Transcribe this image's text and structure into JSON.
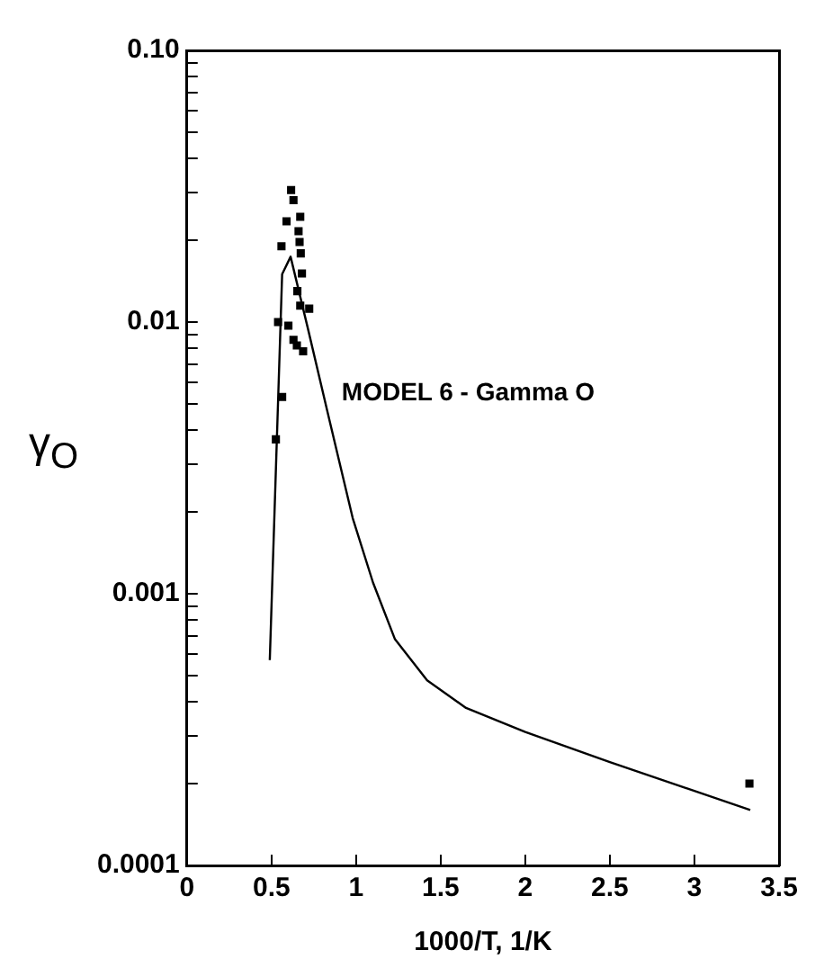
{
  "chart_data": {
    "type": "scatter",
    "xlabel": "1000/T, 1/K",
    "ylabel": "γ$_{O}$",
    "log": "y",
    "grid": false,
    "legend": false,
    "xlim": [
      0,
      3.5
    ],
    "xticks": [
      0,
      0.5,
      1,
      1.5,
      2,
      2.5,
      3,
      3.5
    ],
    "ylim": [
      0.0001,
      0.1
    ],
    "yticks": [
      {
        "value": 0.0001,
        "label": "0.0001"
      },
      {
        "value": 0.0002,
        "label": null
      },
      {
        "value": 0.0003,
        "label": null
      },
      {
        "value": 0.0004,
        "label": null
      },
      {
        "value": 0.0005,
        "label": null
      },
      {
        "value": 0.0006,
        "label": null
      },
      {
        "value": 0.0007,
        "label": null
      },
      {
        "value": 0.0008,
        "label": null
      },
      {
        "value": 0.0009,
        "label": null
      },
      {
        "value": 0.001,
        "label": "0.001"
      },
      {
        "value": 0.002,
        "label": null
      },
      {
        "value": 0.003,
        "label": null
      },
      {
        "value": 0.004,
        "label": null
      },
      {
        "value": 0.005,
        "label": null
      },
      {
        "value": 0.006,
        "label": null
      },
      {
        "value": 0.007,
        "label": null
      },
      {
        "value": 0.008,
        "label": null
      },
      {
        "value": 0.009,
        "label": null
      },
      {
        "value": 0.01,
        "label": "0.01"
      },
      {
        "value": 0.02,
        "label": null
      },
      {
        "value": 0.03,
        "label": null
      },
      {
        "value": 0.04,
        "label": null
      },
      {
        "value": 0.05,
        "label": null
      },
      {
        "value": 0.06,
        "label": null
      },
      {
        "value": 0.07,
        "label": null
      },
      {
        "value": 0.08,
        "label": null
      },
      {
        "value": 0.09,
        "label": null
      },
      {
        "value": 0.1,
        "label": "0.10"
      }
    ],
    "series": [
      {
        "marker": "square",
        "color": "#000000",
        "x": [
          0.616,
          0.63,
          0.589,
          0.67,
          0.559,
          0.66,
          0.666,
          0.673,
          0.68,
          0.653,
          0.67,
          0.723,
          0.539,
          0.6,
          0.63,
          0.65,
          0.687,
          0.563,
          0.526,
          3.325
        ],
        "values": [
          0.0306,
          0.0281,
          0.0235,
          0.0244,
          0.019,
          0.0216,
          0.0197,
          0.0179,
          0.0151,
          0.013,
          0.0115,
          0.0112,
          0.01,
          0.0097,
          0.0086,
          0.0082,
          0.0078,
          0.0053,
          0.0037,
          0.0002
        ]
      },
      {
        "type": "line",
        "name": "MODEL 6 - Gamma O",
        "marker": "none",
        "line_style": "solid",
        "color": "#000000",
        "x": [
          0.49,
          0.563,
          0.613,
          0.713,
          0.83,
          0.98,
          1.1,
          1.23,
          1.42,
          1.65,
          2.0,
          2.5,
          3.33
        ],
        "values": [
          0.00057,
          0.015,
          0.0174,
          0.0096,
          0.0047,
          0.0019,
          0.0011,
          0.00068,
          0.00048,
          0.00038,
          0.00031,
          0.00024,
          0.00016
        ]
      }
    ]
  }
}
